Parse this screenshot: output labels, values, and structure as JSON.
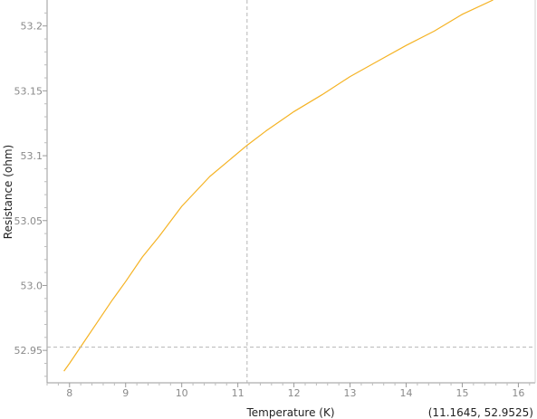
{
  "chart_data": {
    "type": "line",
    "title": "",
    "xlabel": "Temperature (K)",
    "ylabel": "Resistance (ohm)",
    "xlim": [
      7.6,
      16.3
    ],
    "ylim": [
      52.925,
      53.22
    ],
    "x_ticks": [
      "8",
      "9",
      "10",
      "11",
      "12",
      "13",
      "14",
      "15",
      "16"
    ],
    "y_ticks": [
      "52.95",
      "53.0",
      "53.05",
      "53.1",
      "53.15",
      "53.2"
    ],
    "grid": false,
    "legend": "none",
    "series": [
      {
        "color": "#f5b324",
        "x": [
          7.9,
          8.0,
          8.25,
          8.5,
          8.75,
          9.0,
          9.3,
          9.6,
          10.0,
          10.5,
          11.1645,
          11.5,
          12.0,
          12.5,
          13.0,
          13.5,
          14.0,
          14.5,
          15.0,
          15.55
        ],
        "y": [
          52.934,
          52.94,
          52.956,
          52.972,
          52.988,
          53.003,
          53.022,
          53.038,
          53.061,
          53.084,
          53.108,
          53.119,
          53.134,
          53.147,
          53.161,
          53.173,
          53.185,
          53.196,
          53.209,
          53.22
        ]
      }
    ],
    "crosshair": {
      "x": 11.1645,
      "y": 52.9525
    }
  },
  "readout": {
    "text": "(11.1645, 52.9525)"
  }
}
